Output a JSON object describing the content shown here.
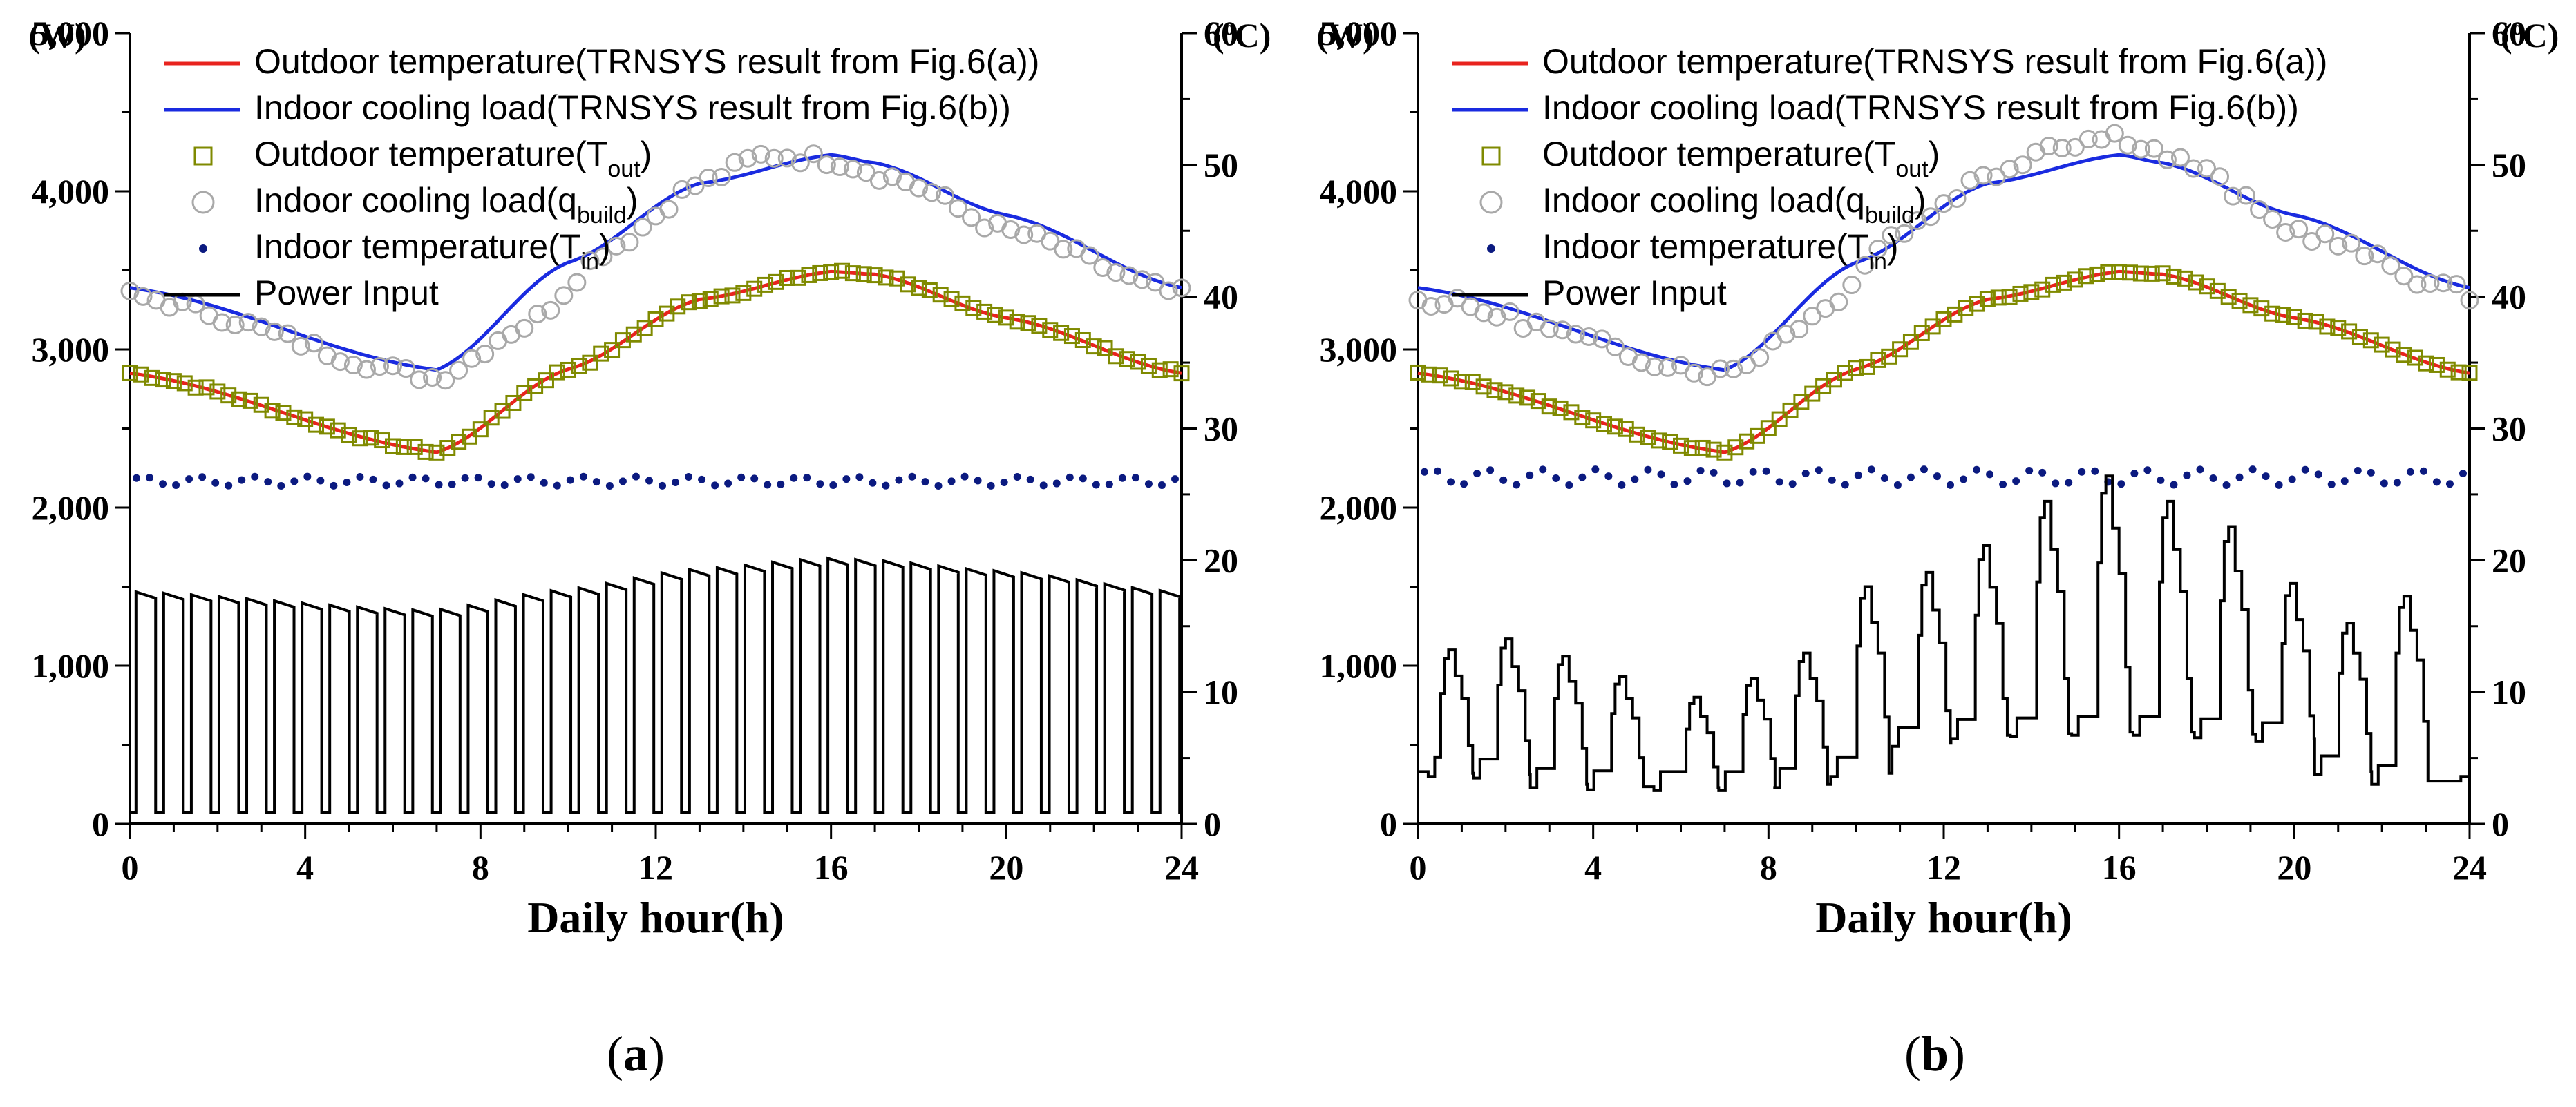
{
  "chart_data": [
    {
      "type": "line",
      "panel_label": "a",
      "xlabel": "Daily hour(h)",
      "left_unit": "(W)",
      "right_unit": "(°C)",
      "right_unit_base": "(",
      "right_unit_sup": "o",
      "right_unit_tail": "C)",
      "xlim": [
        0,
        24
      ],
      "x_ticks": [
        0,
        4,
        8,
        12,
        16,
        20,
        24
      ],
      "x_tick_labels": [
        "0",
        "4",
        "8",
        "12",
        "16",
        "20",
        "24"
      ],
      "ylim_left": [
        0,
        5000
      ],
      "y_left_ticks": [
        0,
        1000,
        2000,
        3000,
        4000,
        5000
      ],
      "y_left_tick_labels": [
        "0",
        "1,000",
        "2,000",
        "3,000",
        "4,000",
        "5,000"
      ],
      "ylim_right": [
        0,
        60
      ],
      "y_right_ticks": [
        0,
        10,
        20,
        30,
        40,
        50,
        60
      ],
      "y_right_tick_labels": [
        "0",
        "10",
        "20",
        "30",
        "40",
        "50",
        "60"
      ],
      "legend": [
        {
          "label": "Outdoor temperature(TRNSYS result from Fig.6(a))",
          "marker": "line",
          "color": "#e8231e"
        },
        {
          "label": "Indoor cooling load(TRNSYS result from Fig.6(b))",
          "marker": "line",
          "color": "#1a2be0"
        },
        {
          "label": "Outdoor temperature(T",
          "sub": "out",
          "tail": ")",
          "marker": "square",
          "color": "#7f8a00"
        },
        {
          "label": "Indoor cooling load(q",
          "sub": "build",
          "tail": ")",
          "marker": "circle",
          "color": "#a9a9a9"
        },
        {
          "label": "Indoor temperature(T",
          "sub": "in",
          "tail": ")",
          "marker": "dot",
          "color": "#0b1a80"
        },
        {
          "label": "Power Input",
          "marker": "line",
          "color": "#000000"
        }
      ],
      "series": [
        {
          "name": "Outdoor temperature (TRNSYS)",
          "axis": "right",
          "color": "#e8231e",
          "x": [
            0,
            7,
            10,
            13,
            16,
            17,
            20,
            24
          ],
          "y": [
            34.2,
            28.2,
            34.5,
            39.8,
            41.9,
            41.7,
            38.4,
            34.2
          ]
        },
        {
          "name": "Indoor cooling load (TRNSYS)",
          "axis": "left",
          "color": "#1a2be0",
          "x": [
            0,
            7,
            10,
            13,
            16,
            17,
            20,
            24
          ],
          "y": [
            3390,
            2870,
            3550,
            4050,
            4230,
            4180,
            3850,
            3390
          ]
        },
        {
          "name": "Outdoor temperature (Tout)",
          "axis": "right",
          "color": "#7f8a00",
          "x": [
            0,
            7,
            10,
            13,
            16,
            17,
            20,
            24
          ],
          "y": [
            34.2,
            28.2,
            34.5,
            39.8,
            41.9,
            41.7,
            38.4,
            34.2
          ],
          "jitter": 0.3
        },
        {
          "name": "Indoor cooling load (qbuild)",
          "axis": "left",
          "color": "#a9a9a9",
          "x": [
            0,
            7,
            9,
            11,
            13,
            14.5,
            16,
            17.5,
            20,
            24
          ],
          "y": [
            3340,
            2820,
            3150,
            3650,
            4050,
            4230,
            4200,
            4080,
            3750,
            3350
          ],
          "jitter": 40
        },
        {
          "name": "Indoor temperature (Tin)",
          "axis": "right",
          "color": "#0b1a80",
          "x": [
            0,
            24
          ],
          "y": [
            26.0,
            26.0
          ],
          "amplitude": 0.35,
          "period": 1.25
        },
        {
          "name": "Power Input",
          "axis": "left",
          "color": "#000000",
          "style": "on-off",
          "cycles": 38,
          "low": 70,
          "x": [
            0,
            7,
            10,
            13,
            16,
            17,
            20,
            24
          ],
          "y": [
            1450,
            1330,
            1460,
            1590,
            1660,
            1650,
            1580,
            1450
          ]
        }
      ]
    },
    {
      "type": "line",
      "panel_label": "b",
      "xlabel": "Daily hour(h)",
      "left_unit": "(W)",
      "right_unit": "(°C)",
      "right_unit_base": "(",
      "right_unit_sup": "o",
      "right_unit_tail": "C)",
      "xlim": [
        0,
        24
      ],
      "x_ticks": [
        0,
        4,
        8,
        12,
        16,
        20,
        24
      ],
      "x_tick_labels": [
        "0",
        "4",
        "8",
        "12",
        "16",
        "20",
        "24"
      ],
      "ylim_left": [
        0,
        5000
      ],
      "y_left_ticks": [
        0,
        1000,
        2000,
        3000,
        4000,
        5000
      ],
      "y_left_tick_labels": [
        "0",
        "1,000",
        "2,000",
        "3,000",
        "4,000",
        "5,000"
      ],
      "ylim_right": [
        0,
        60
      ],
      "y_right_ticks": [
        0,
        10,
        20,
        30,
        40,
        50,
        60
      ],
      "y_right_tick_labels": [
        "0",
        "10",
        "20",
        "30",
        "40",
        "50",
        "60"
      ],
      "legend": [
        {
          "label": "Outdoor temperature(TRNSYS result from Fig.6(a))",
          "marker": "line",
          "color": "#e8231e"
        },
        {
          "label": "Indoor cooling load(TRNSYS result from Fig.6(b))",
          "marker": "line",
          "color": "#1a2be0"
        },
        {
          "label": "Outdoor temperature(T",
          "sub": "out",
          "tail": ")",
          "marker": "square",
          "color": "#7f8a00"
        },
        {
          "label": "Indoor cooling load(q",
          "sub": "build",
          "tail": ")",
          "marker": "circle",
          "color": "#a9a9a9"
        },
        {
          "label": "Indoor temperature(T",
          "sub": "in",
          "tail": ")",
          "marker": "dot",
          "color": "#0b1a80"
        },
        {
          "label": "Power Input",
          "marker": "line",
          "color": "#000000"
        }
      ],
      "series": [
        {
          "name": "Outdoor temperature (TRNSYS)",
          "axis": "right",
          "color": "#e8231e",
          "x": [
            0,
            7,
            10,
            13,
            16,
            17,
            20,
            24
          ],
          "y": [
            34.2,
            28.2,
            34.5,
            39.8,
            41.9,
            41.7,
            38.4,
            34.2
          ]
        },
        {
          "name": "Indoor cooling load (TRNSYS)",
          "axis": "left",
          "color": "#1a2be0",
          "x": [
            0,
            7,
            10,
            13,
            16,
            17,
            20,
            24
          ],
          "y": [
            3390,
            2870,
            3550,
            4050,
            4230,
            4180,
            3850,
            3390
          ]
        },
        {
          "name": "Outdoor temperature (Tout)",
          "axis": "right",
          "color": "#7f8a00",
          "x": [
            0,
            7,
            10,
            13,
            16,
            17,
            20,
            24
          ],
          "y": [
            34.2,
            28.2,
            34.5,
            39.8,
            41.9,
            41.7,
            38.4,
            34.2
          ],
          "jitter": 0.2
        },
        {
          "name": "Indoor cooling load (qbuild)",
          "axis": "left",
          "color": "#a9a9a9",
          "x": [
            0,
            7,
            9,
            11,
            13,
            14.5,
            16,
            17.5,
            20,
            24
          ],
          "y": [
            3320,
            2850,
            3200,
            3750,
            4100,
            4300,
            4350,
            4180,
            3750,
            3350
          ],
          "jitter": 45
        },
        {
          "name": "Indoor temperature (Tin)",
          "axis": "right",
          "color": "#0b1a80",
          "x": [
            0,
            24
          ],
          "y": [
            26.3,
            26.3
          ],
          "amplitude": 0.6,
          "period": 1.25
        },
        {
          "name": "Power Input",
          "axis": "left",
          "color": "#000000",
          "style": "peaks",
          "peak_x": [
            0.7,
            2.0,
            3.3,
            4.6,
            6.3,
            7.6,
            8.8,
            10.2,
            11.6,
            12.9,
            14.3,
            15.7,
            17.1,
            18.5,
            19.9,
            21.2,
            22.5
          ],
          "peak_y": [
            1100,
            1170,
            1060,
            930,
            800,
            920,
            1080,
            1500,
            1590,
            1760,
            2040,
            2200,
            2040,
            1880,
            1520,
            1270,
            1440
          ],
          "base_y": [
            300,
            290,
            230,
            215,
            210,
            210,
            230,
            300,
            490,
            540,
            550,
            560,
            560,
            545,
            520,
            310,
            250
          ],
          "floor_start": 330,
          "floor_end": 300
        }
      ]
    }
  ]
}
